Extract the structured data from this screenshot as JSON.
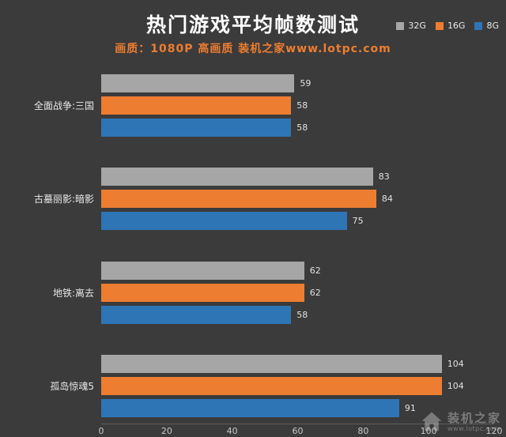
{
  "header": {
    "title": "热门游戏平均帧数测试",
    "subtitle": "画质：1080P 高画质 装机之家www.lotpc.com"
  },
  "legend": {
    "items": [
      {
        "label": "32G",
        "color": "#a6a6a6"
      },
      {
        "label": "16G",
        "color": "#ed7d31"
      },
      {
        "label": "8G",
        "color": "#2e75b6"
      }
    ]
  },
  "chart_data": {
    "type": "bar",
    "orientation": "horizontal",
    "title": "热门游戏平均帧数测试",
    "subtitle": "画质：1080P 高画质 装机之家www.lotpc.com",
    "categories": [
      "全面战争:三国",
      "古墓丽影:暗影",
      "地铁:离去",
      "孤岛惊魂5"
    ],
    "series": [
      {
        "name": "32G",
        "color": "#a6a6a6",
        "values": [
          59,
          83,
          62,
          104
        ]
      },
      {
        "name": "16G",
        "color": "#ed7d31",
        "values": [
          58,
          84,
          62,
          104
        ]
      },
      {
        "name": "8G",
        "color": "#2e75b6",
        "values": [
          58,
          75,
          58,
          91
        ]
      }
    ],
    "xlim": [
      0,
      120
    ],
    "x_ticks": [
      0,
      20,
      40,
      60,
      80,
      100,
      120
    ],
    "value_labels": true,
    "grid": false,
    "legend_position": "top-right"
  },
  "watermark": {
    "logo_text": "装机之家",
    "site": "www.lotpc.com"
  },
  "colors": {
    "background": "#3b3b3b",
    "title_text": "#ffffff",
    "subtitle_text": "#ed7d31",
    "axis_text": "#c9c9c9",
    "value_text": "#e2e2e2"
  }
}
